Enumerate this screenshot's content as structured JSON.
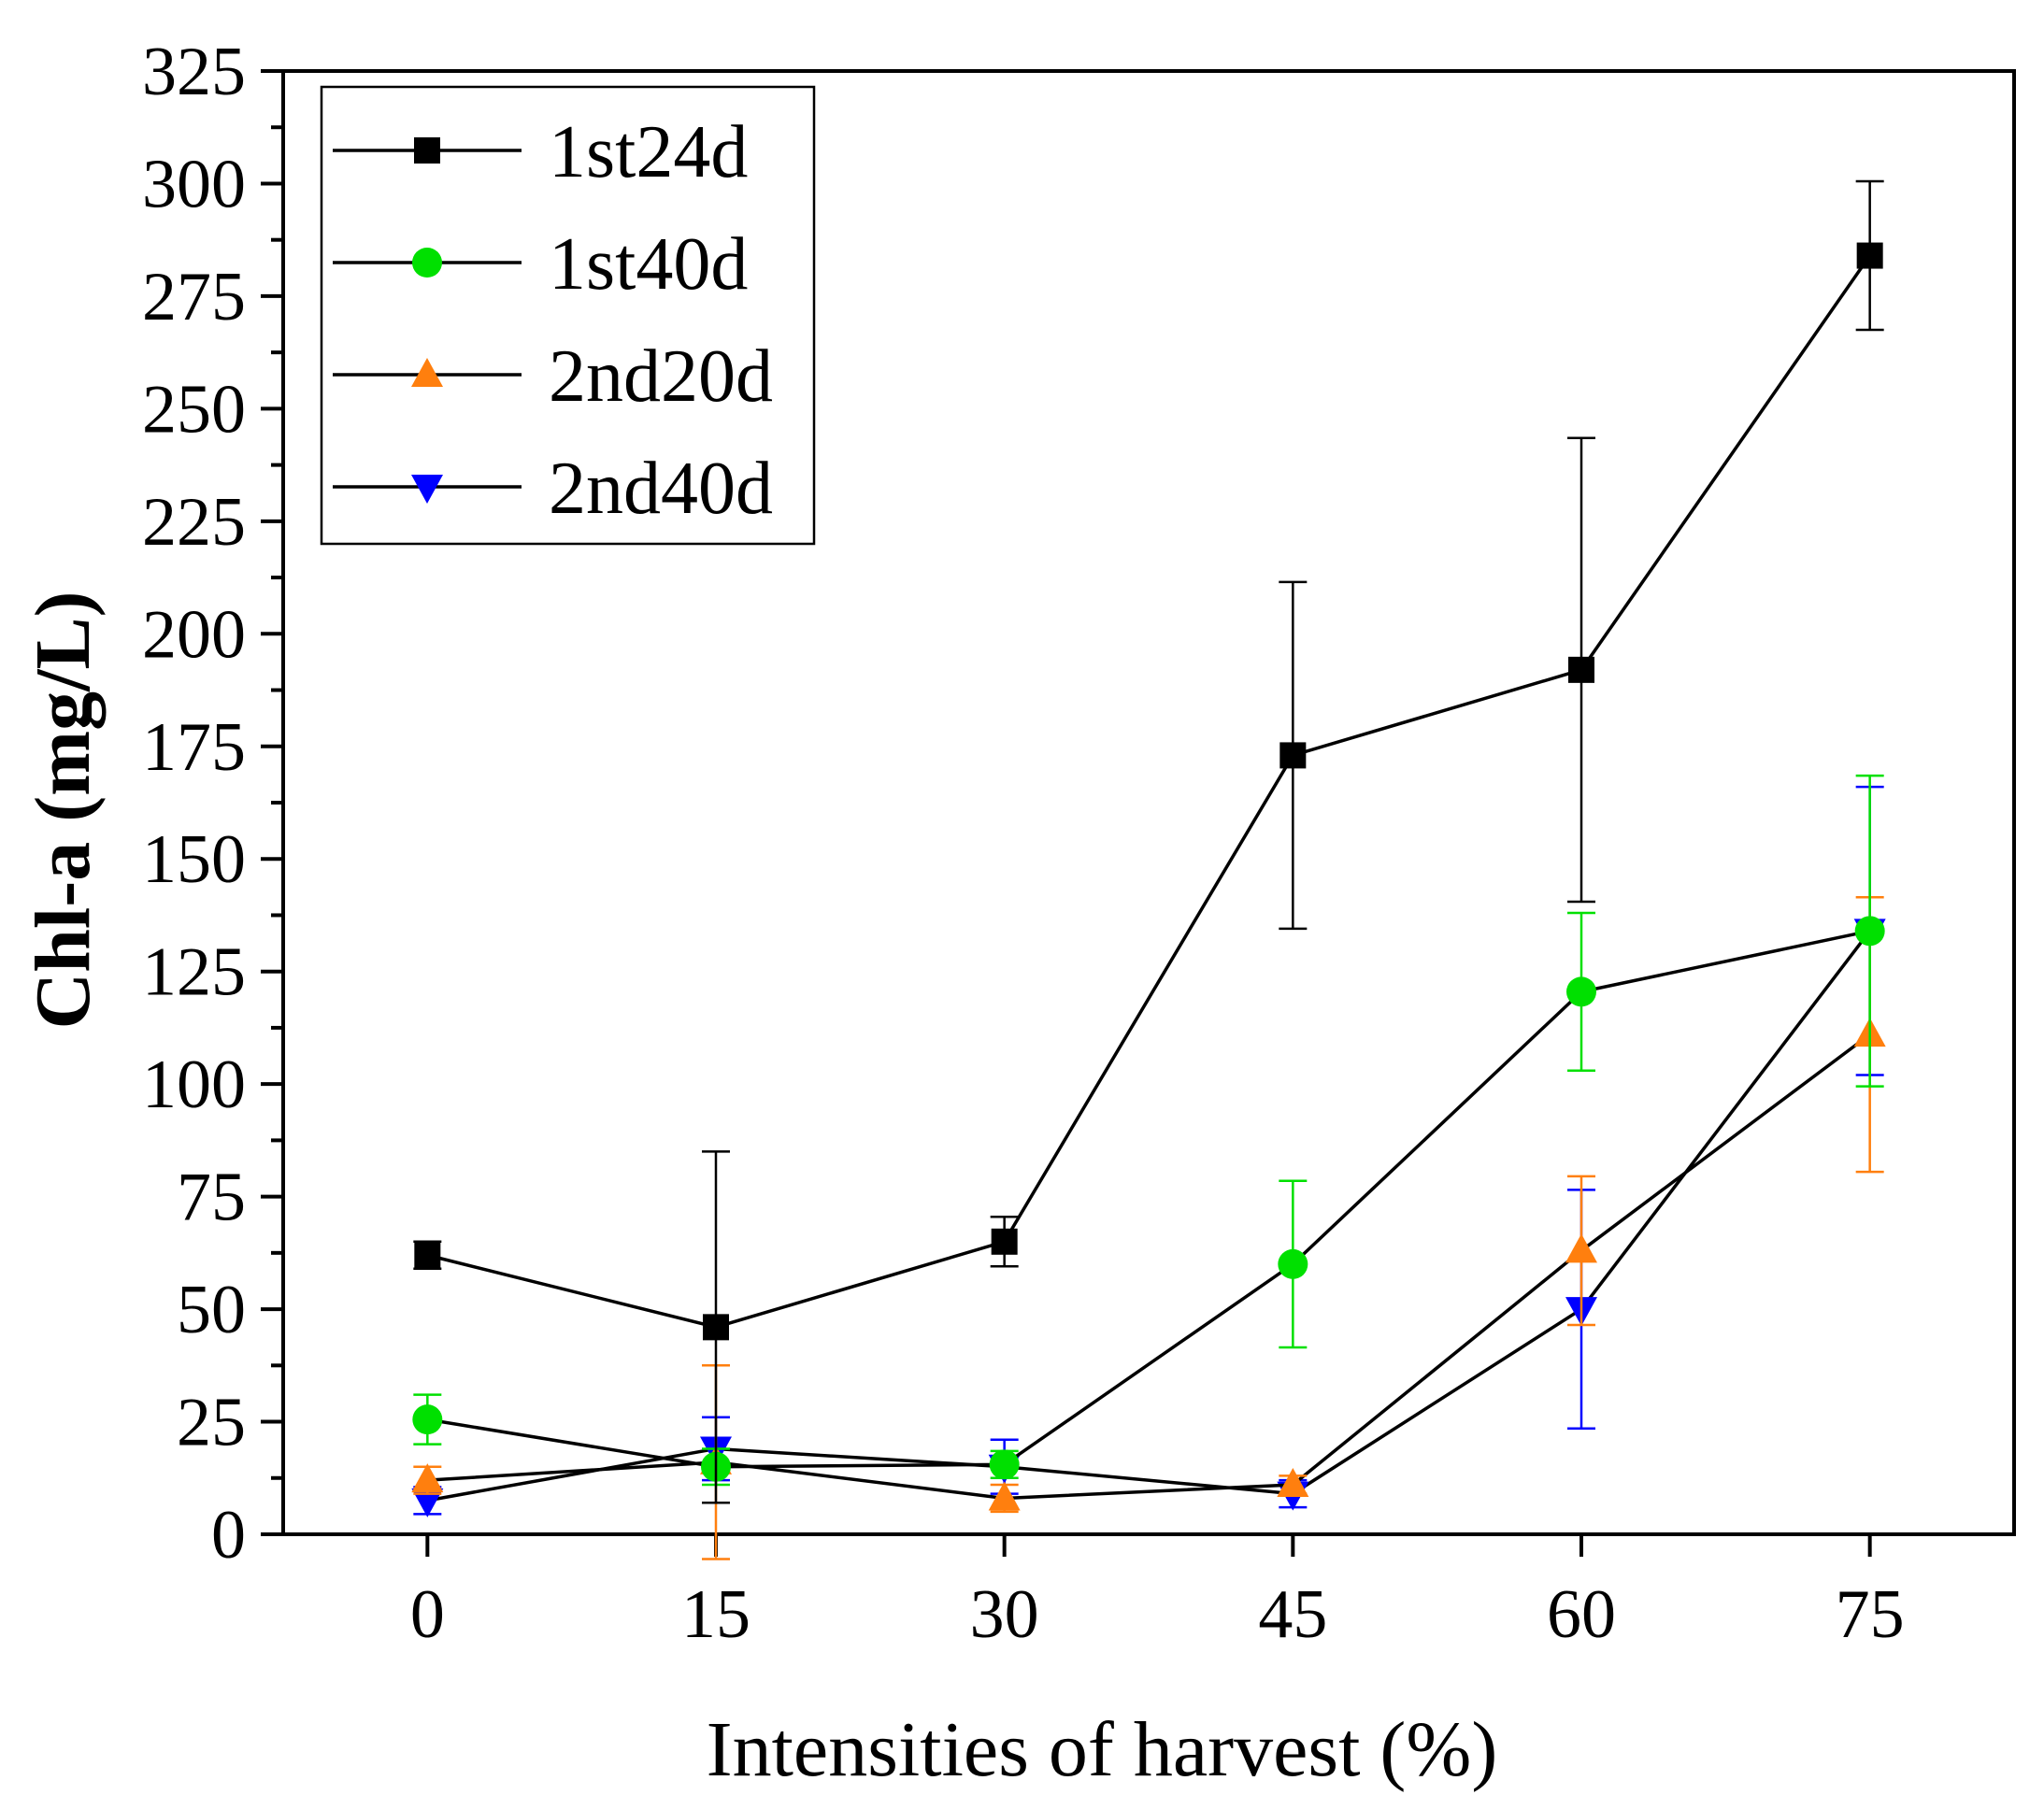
{
  "chart_data": {
    "type": "line",
    "title": "",
    "xlabel": "Intensities of harvest (%)",
    "ylabel": "Chl-a (mg/L)",
    "x": [
      0,
      15,
      30,
      45,
      60,
      75
    ],
    "xticks": [
      "0",
      "15",
      "30",
      "45",
      "60",
      "75"
    ],
    "xlim": [
      -7.5,
      82.5
    ],
    "ylim": [
      0,
      325
    ],
    "yticks": [
      "0",
      "25",
      "50",
      "75",
      "100",
      "125",
      "150",
      "175",
      "200",
      "225",
      "250",
      "275",
      "300",
      "325"
    ],
    "grid": false,
    "legend_position": "top-left",
    "series": [
      {
        "name": "1st24d",
        "marker": "square",
        "color": "#000000",
        "values": [
          62,
          46,
          65,
          173,
          192,
          284
        ],
        "err": [
          3,
          39,
          5.5,
          38.5,
          51.5,
          16.5
        ]
      },
      {
        "name": "1st40d",
        "marker": "circle",
        "color": "#00e000",
        "values": [
          25.5,
          15,
          15.5,
          60,
          120.5,
          134
        ],
        "err": [
          5.5,
          4,
          3,
          18.5,
          17.5,
          34.5
        ]
      },
      {
        "name": "2nd20d",
        "marker": "triangle-up",
        "color": "#ff7f0e",
        "values": [
          12,
          16,
          8,
          11,
          63,
          111
        ],
        "err": [
          3,
          21.5,
          3,
          2,
          16.5,
          30.5
        ]
      },
      {
        "name": "2nd40d",
        "marker": "triangle-down",
        "color": "#0000ff",
        "values": [
          7.5,
          19,
          15,
          9,
          50,
          134
        ],
        "err": [
          3,
          7,
          6,
          3,
          26.5,
          32
        ]
      }
    ]
  }
}
